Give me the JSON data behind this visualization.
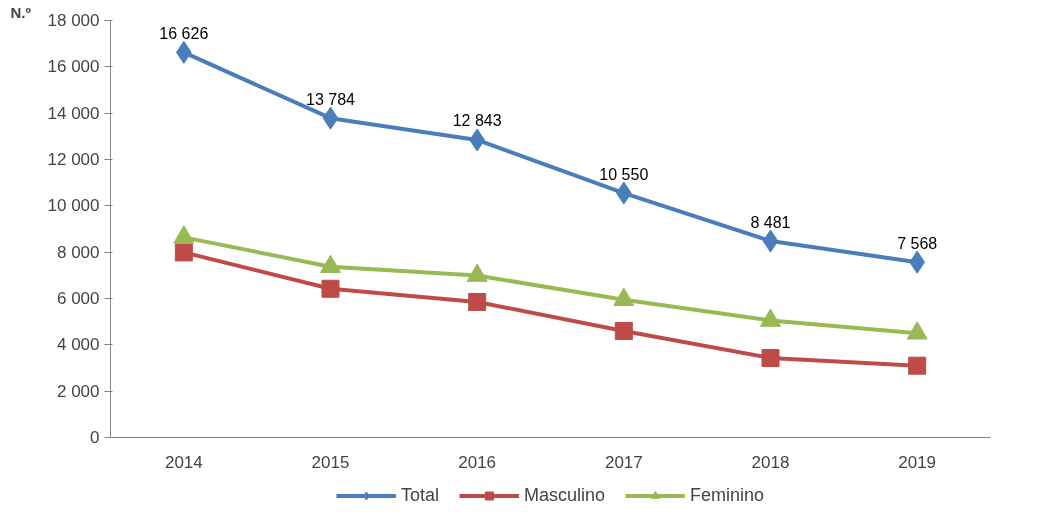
{
  "chart_data": {
    "type": "line",
    "ylabel": "N.º",
    "categories": [
      "2014",
      "2015",
      "2016",
      "2017",
      "2018",
      "2019"
    ],
    "series": [
      {
        "name": "Total",
        "color": "#4a7ebb",
        "marker": "diamond",
        "values": [
          16626,
          13784,
          12843,
          10550,
          8481,
          7568
        ],
        "value_labels": [
          "16 626",
          "13 784",
          "12 843",
          "10 550",
          "8 481",
          "7 568"
        ]
      },
      {
        "name": "Masculino",
        "color": "#be4b48",
        "marker": "square",
        "values": [
          7990,
          6420,
          5850,
          4600,
          3430,
          3100
        ]
      },
      {
        "name": "Feminino",
        "color": "#98b954",
        "marker": "triangle",
        "values": [
          8640,
          7370,
          6990,
          5950,
          5050,
          4500
        ]
      }
    ],
    "ylim": [
      0,
      18000
    ],
    "yticks": [
      {
        "value": 0,
        "label": "0"
      },
      {
        "value": 2000,
        "label": "2 000"
      },
      {
        "value": 4000,
        "label": "4 000"
      },
      {
        "value": 6000,
        "label": "6 000"
      },
      {
        "value": 8000,
        "label": "8 000"
      },
      {
        "value": 10000,
        "label": "10 000"
      },
      {
        "value": 12000,
        "label": "12 000"
      },
      {
        "value": 14000,
        "label": "14 000"
      },
      {
        "value": 16000,
        "label": "16 000"
      },
      {
        "value": 18000,
        "label": "18 000"
      }
    ],
    "grid": false,
    "legend": "bottom",
    "line_style": "solid"
  }
}
